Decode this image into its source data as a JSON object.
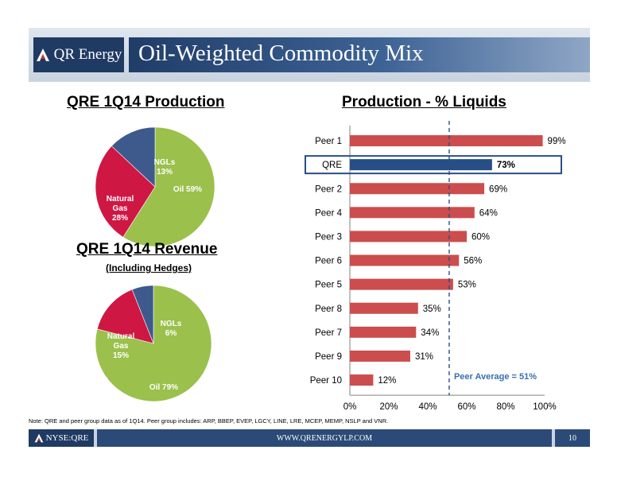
{
  "header": {
    "logo_text": "QR Energy",
    "title": "Oil-Weighted Commodity Mix"
  },
  "colors": {
    "oil": "#9bc04c",
    "natural_gas": "#cf1744",
    "ngls": "#3e5a8c",
    "peer_bar": "#cc4d4d",
    "qre_bar": "#284e87",
    "navy": "#1f3a63"
  },
  "chart_data": [
    {
      "type": "pie",
      "title": "QRE 1Q14 Production",
      "slices": [
        {
          "label": "Oil 59%",
          "value": 59
        },
        {
          "label_lines": [
            "Natural",
            "Gas",
            "28%"
          ],
          "value": 28
        },
        {
          "label_lines": [
            "NGLs",
            "13%"
          ],
          "value": 13
        }
      ]
    },
    {
      "type": "pie",
      "title": "QRE 1Q14 Revenue",
      "subtitle": "(Including Hedges)",
      "slices": [
        {
          "label": "Oil 79%",
          "value": 79
        },
        {
          "label_lines": [
            "Natural",
            "Gas",
            "15%"
          ],
          "value": 15
        },
        {
          "label_lines": [
            "NGLs",
            "6%"
          ],
          "value": 6
        }
      ]
    },
    {
      "type": "bar",
      "orientation": "horizontal",
      "title": "Production - % Liquids",
      "categories": [
        "Peer 1",
        "QRE",
        "Peer 2",
        "Peer 4",
        "Peer 3",
        "Peer 6",
        "Peer 5",
        "Peer 8",
        "Peer 7",
        "Peer 9",
        "Peer 10"
      ],
      "values": [
        99,
        73,
        69,
        64,
        60,
        56,
        53,
        35,
        34,
        31,
        12
      ],
      "value_labels": [
        "99%",
        "73%",
        "69%",
        "64%",
        "60%",
        "56%",
        "53%",
        "35%",
        "34%",
        "31%",
        "12%"
      ],
      "highlight": "QRE",
      "xlim": [
        0,
        100
      ],
      "xticks": [
        "0%",
        "20%",
        "40%",
        "60%",
        "80%",
        "100%"
      ],
      "reference_line": {
        "value": 51,
        "label": "Peer Average = 51%"
      }
    }
  ],
  "note": "Note: QRE and peer group data as of 1Q14.  Peer group includes: ARP, BBEP, EVEP, LGCY, LINE, LRE, MCEP, MEMP, NSLP and VNR.",
  "footer": {
    "ticker": "NYSE:QRE",
    "website": "WWW.QRENERGYLP.COM",
    "page": "10"
  }
}
